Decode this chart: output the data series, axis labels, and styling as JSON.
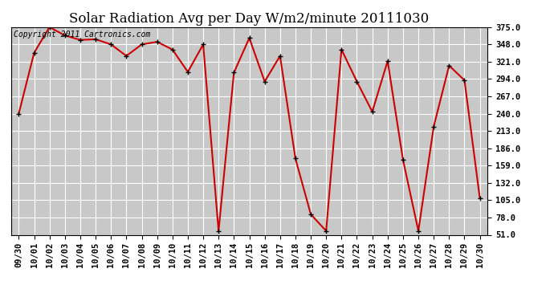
{
  "title": "Solar Radiation Avg per Day W/m2/minute 20111030",
  "copyright_text": "Copyright 2011 Cartronics.com",
  "dates": [
    "09/30",
    "10/01",
    "10/02",
    "10/03",
    "10/04",
    "10/05",
    "10/06",
    "10/07",
    "10/08",
    "10/09",
    "10/10",
    "10/11",
    "10/12",
    "10/13",
    "10/14",
    "10/15",
    "10/16",
    "10/17",
    "10/18",
    "10/19",
    "10/20",
    "10/21",
    "10/22",
    "10/23",
    "10/24",
    "10/25",
    "10/26",
    "10/27",
    "10/28",
    "10/29",
    "10/30"
  ],
  "values": [
    240,
    335,
    375,
    362,
    355,
    356,
    348,
    330,
    348,
    352,
    340,
    305,
    348,
    57,
    304,
    358,
    290,
    330,
    170,
    83,
    57,
    340,
    290,
    243,
    322,
    168,
    57,
    220,
    315,
    292,
    108
  ],
  "line_color": "#cc0000",
  "bg_color": "#ffffff",
  "plot_bg_color": "#c8c8c8",
  "grid_color": "#ffffff",
  "ytick_labels": [
    "51.0",
    "78.0",
    "105.0",
    "132.0",
    "159.0",
    "186.0",
    "213.0",
    "240.0",
    "267.0",
    "294.0",
    "321.0",
    "348.0",
    "375.0"
  ],
  "ytick_values": [
    51.0,
    78.0,
    105.0,
    132.0,
    159.0,
    186.0,
    213.0,
    240.0,
    267.0,
    294.0,
    321.0,
    348.0,
    375.0
  ],
  "ylim": [
    51.0,
    375.0
  ],
  "title_fontsize": 12,
  "copyright_fontsize": 7,
  "tick_fontsize": 7.5
}
